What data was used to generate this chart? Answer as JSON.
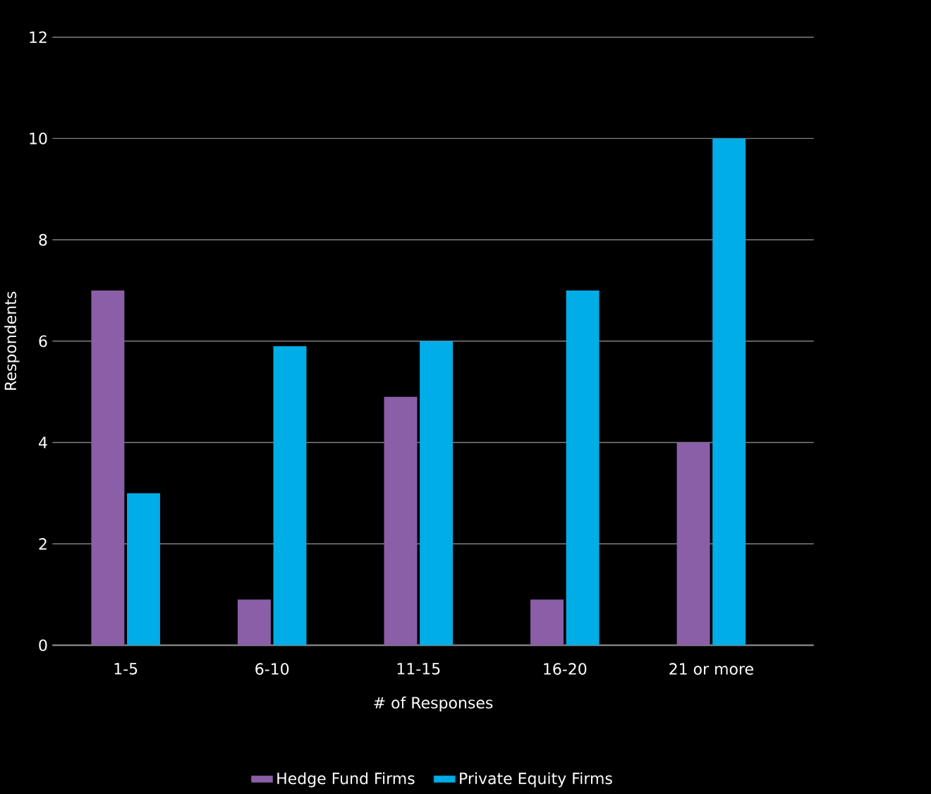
{
  "chart_data": {
    "type": "bar",
    "xlabel": "# of Responses",
    "ylabel": "Respondents",
    "categories": [
      "1-5",
      "6-10",
      "11-15",
      "16-20",
      "21 or more"
    ],
    "series": [
      {
        "name": "Hedge Fund Firms",
        "color": "#8a5fa8",
        "values": [
          7,
          0.9,
          4.9,
          0.9,
          4
        ]
      },
      {
        "name": "Private Equity Firms",
        "color": "#00ade6",
        "values": [
          3,
          5.9,
          6,
          7,
          10
        ]
      }
    ],
    "ylim": [
      0,
      12
    ],
    "yticks": [
      0,
      2,
      4,
      6,
      8,
      10,
      12
    ],
    "grid": "y",
    "legend": "bottom"
  }
}
